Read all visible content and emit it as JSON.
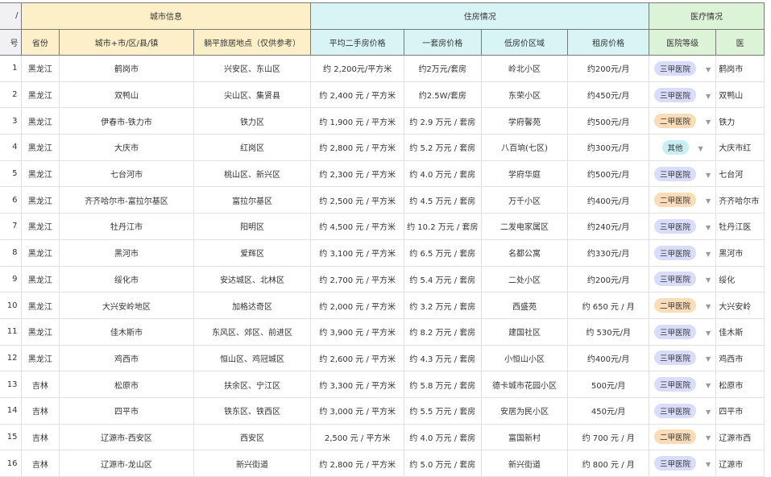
{
  "header": {
    "index_top": "/",
    "index": "号",
    "group_city": "城市信息",
    "group_housing": "住房情况",
    "group_medical": "医疗情况",
    "cols": [
      "省份",
      "城市+市/区/县/镇",
      "躺平旅居地点（仅供参考）",
      "平均二手房价格",
      "一套房价格",
      "低房价区域",
      "租房价格",
      "医院等级",
      "医"
    ]
  },
  "colors": {
    "三甲医院": "#d9dcfb",
    "二甲医院": "#fbdcb8",
    "其他": "#c9eef3"
  },
  "rows": [
    [
      "1",
      "黑龙江",
      "鹤岗市",
      "兴安区、东山区",
      "约  2,200元/平方米",
      "约2万元/套房",
      "岭北小区",
      "约200元/月",
      "三甲医院",
      "鹤岗市"
    ],
    [
      "2",
      "黑龙江",
      "双鸭山",
      "尖山区、集贤县",
      "约 2,400 元 / 平方米",
      "约2.5W/套房",
      "东荣小区",
      "约450元/月",
      "三甲医院",
      "双鸭山"
    ],
    [
      "3",
      "黑龙江",
      "伊春市-铁力市",
      "铁力区",
      "约 1,900 元 / 平方米",
      "约 2.9 万元 / 套房",
      "学府馨苑",
      "约500元/月",
      "二甲医院",
      "铁力"
    ],
    [
      "4",
      "黑龙江",
      "大庆市",
      "红岗区",
      "约 2,800 元 / 平方米",
      "约 5.2 万元 / 套房",
      "八百垧(七区)",
      "约300元/月",
      "其他",
      "大庆市红"
    ],
    [
      "5",
      "黑龙江",
      "七台河市",
      "桃山区、新兴区",
      "约 2,300 元 / 平方米",
      "约 4.0 万元 / 套房",
      "学府华庭",
      "约500元/月",
      "三甲医院",
      "七台河"
    ],
    [
      "6",
      "黑龙江",
      "齐齐哈尔市-富拉尔基区",
      "富拉尔基区",
      "约 2,500 元 / 平方米",
      "约 4.5 万元 / 套房",
      "万千小区",
      "约400元/月",
      "二甲医院",
      "齐齐哈尔市"
    ],
    [
      "7",
      "黑龙江",
      "牡丹江市",
      "阳明区",
      "约 4,500 元 / 平方米",
      "约 10.2 万元 / 套房",
      "二发电家属区",
      "约240元/月",
      "三甲医院",
      "牡丹江医"
    ],
    [
      "8",
      "黑龙江",
      "黑河市",
      "爱辉区",
      "约 3,100 元 / 平方米",
      "约 6.5 万元 / 套房",
      "名都公寓",
      "约330元/月",
      "三甲医院",
      "黑河市"
    ],
    [
      "9",
      "黑龙江",
      "绥化市",
      "安达城区、北林区",
      "约 2,700 元 / 平方米",
      "约 5.4 万元 / 套房",
      "二处小区",
      "约200元/月",
      "三甲医院",
      "绥化"
    ],
    [
      "10",
      "黑龙江",
      "大兴安岭地区",
      "加格达奇区",
      "约 2,000 元 / 平方米",
      "约 3.2 万元 / 套房",
      "西盛苑",
      "约 650 元 / 月",
      "二甲医院",
      "大兴安岭"
    ],
    [
      "11",
      "黑龙江",
      "佳木斯市",
      "东风区、郊区、前进区",
      "约 3,900 元 / 平方米",
      "约 8.2 万元 / 套房",
      "建国社区",
      "约 530元/月",
      "三甲医院",
      "佳木斯"
    ],
    [
      "12",
      "黑龙江",
      "鸡西市",
      "恒山区、鸡冠城区",
      "约 2,600 元 / 平方米",
      "约 4.3 万元 / 套房",
      "小恒山小区",
      "约400元/月",
      "三甲医院",
      "鸡西市"
    ],
    [
      "13",
      "吉林",
      "松原市",
      "扶余区、宁江区",
      "约 3,300 元 / 平方米",
      "约 5.8 万元 / 套房",
      "德卡城市花园小区",
      "500元/月",
      "三甲医院",
      "松原市"
    ],
    [
      "14",
      "吉林",
      "四平市",
      "铁东区、铁西区",
      "约 3,000 元 / 平方米",
      "约 5.5 万元 / 套房",
      "安居为民小区",
      "450元/月",
      "三甲医院",
      "四平市"
    ],
    [
      "15",
      "吉林",
      "辽源市-西安区",
      "西安区",
      "2,500 元 / 平方米",
      "约 4.0 万元 / 套房",
      "富国新村",
      "约 700 元 / 月",
      "二甲医院",
      "辽源市西"
    ],
    [
      "16",
      "吉林",
      "辽源市-龙山区",
      "新兴街道",
      "约 2,800 元 / 平方米",
      "约 5.0 万元 / 套房",
      "新兴街道",
      "约 800 元 / 月",
      "三甲医院",
      "辽源市"
    ]
  ]
}
